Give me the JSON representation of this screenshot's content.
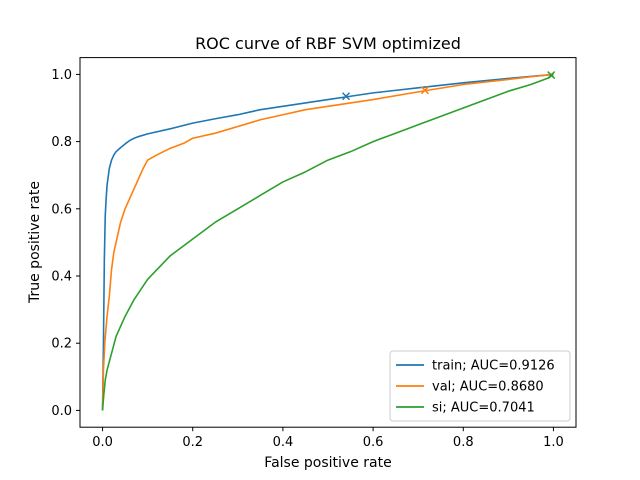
{
  "chart_data": {
    "type": "line",
    "title": "ROC curve of RBF SVM optimized",
    "xlabel": "False positive rate",
    "ylabel": "True positive rate",
    "xlim": [
      -0.05,
      1.05
    ],
    "ylim": [
      -0.05,
      1.05
    ],
    "xticks": [
      "0.0",
      "0.2",
      "0.4",
      "0.6",
      "0.8",
      "1.0"
    ],
    "yticks": [
      "0.0",
      "0.2",
      "0.4",
      "0.6",
      "0.8",
      "1.0"
    ],
    "grid": false,
    "legend_position": "lower right",
    "series": [
      {
        "name": "train; AUC=0.9126",
        "color": "#1f77b4",
        "x": [
          0,
          0.002,
          0.004,
          0.006,
          0.008,
          0.01,
          0.015,
          0.02,
          0.025,
          0.03,
          0.04,
          0.05,
          0.06,
          0.07,
          0.08,
          0.1,
          0.15,
          0.2,
          0.25,
          0.3,
          0.35,
          0.4,
          0.45,
          0.5,
          0.55,
          0.6,
          0.7,
          0.8,
          0.9,
          1.0
        ],
        "y": [
          0.0,
          0.2,
          0.45,
          0.58,
          0.63,
          0.67,
          0.72,
          0.745,
          0.76,
          0.77,
          0.782,
          0.793,
          0.803,
          0.81,
          0.815,
          0.823,
          0.838,
          0.855,
          0.868,
          0.88,
          0.895,
          0.905,
          0.915,
          0.925,
          0.935,
          0.945,
          0.96,
          0.975,
          0.988,
          1.0
        ],
        "marker": {
          "x": 0.54,
          "y": 0.935
        }
      },
      {
        "name": "val; AUC=0.8680",
        "color": "#ff7f0e",
        "x": [
          0,
          0.002,
          0.005,
          0.01,
          0.015,
          0.02,
          0.025,
          0.03,
          0.035,
          0.04,
          0.05,
          0.06,
          0.07,
          0.08,
          0.09,
          0.1,
          0.12,
          0.15,
          0.18,
          0.2,
          0.25,
          0.3,
          0.35,
          0.4,
          0.45,
          0.5,
          0.6,
          0.7,
          0.8,
          0.9,
          0.95,
          1.0
        ],
        "y": [
          0.0,
          0.12,
          0.2,
          0.28,
          0.34,
          0.42,
          0.47,
          0.5,
          0.53,
          0.56,
          0.6,
          0.63,
          0.66,
          0.69,
          0.72,
          0.745,
          0.76,
          0.78,
          0.795,
          0.81,
          0.825,
          0.845,
          0.865,
          0.88,
          0.895,
          0.905,
          0.925,
          0.948,
          0.97,
          0.985,
          0.993,
          1.0
        ],
        "marker": {
          "x": 0.715,
          "y": 0.953
        }
      },
      {
        "name": "si; AUC=0.7041",
        "color": "#2ca02c",
        "x": [
          0,
          0.003,
          0.006,
          0.01,
          0.02,
          0.03,
          0.05,
          0.07,
          0.1,
          0.15,
          0.2,
          0.25,
          0.3,
          0.35,
          0.4,
          0.45,
          0.5,
          0.55,
          0.6,
          0.65,
          0.7,
          0.75,
          0.8,
          0.85,
          0.9,
          0.95,
          0.99,
          1.0
        ],
        "y": [
          0.0,
          0.05,
          0.09,
          0.12,
          0.17,
          0.22,
          0.28,
          0.33,
          0.39,
          0.46,
          0.51,
          0.56,
          0.6,
          0.64,
          0.68,
          0.71,
          0.745,
          0.77,
          0.8,
          0.825,
          0.85,
          0.875,
          0.9,
          0.925,
          0.95,
          0.97,
          0.99,
          1.0
        ],
        "marker": {
          "x": 0.995,
          "y": 0.998
        }
      }
    ]
  }
}
